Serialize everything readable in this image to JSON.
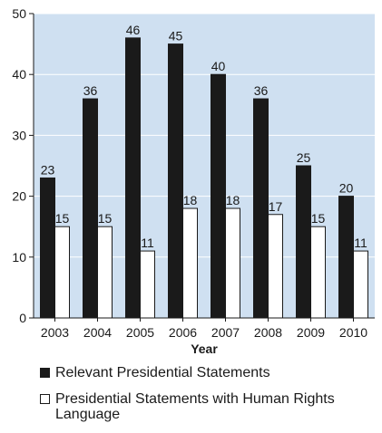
{
  "chart_data": {
    "type": "bar",
    "xlabel": "Year",
    "ylabel": "",
    "ylim": [
      0,
      50
    ],
    "yticks": [
      0,
      10,
      20,
      30,
      40,
      50
    ],
    "categories": [
      "2003",
      "2004",
      "2005",
      "2006",
      "2007",
      "2008",
      "2009",
      "2010"
    ],
    "series": [
      {
        "name": "Relevant Presidential Statements",
        "color": "#1a1a1a",
        "values": [
          23,
          36,
          46,
          45,
          40,
          36,
          25,
          20
        ]
      },
      {
        "name": "Presidential Statements with Human Rights Language",
        "color": "#ffffff",
        "values": [
          15,
          15,
          11,
          18,
          18,
          17,
          15,
          11
        ]
      }
    ],
    "plot_background": "#cfe0f1",
    "grid": true,
    "legend_position": "bottom"
  }
}
